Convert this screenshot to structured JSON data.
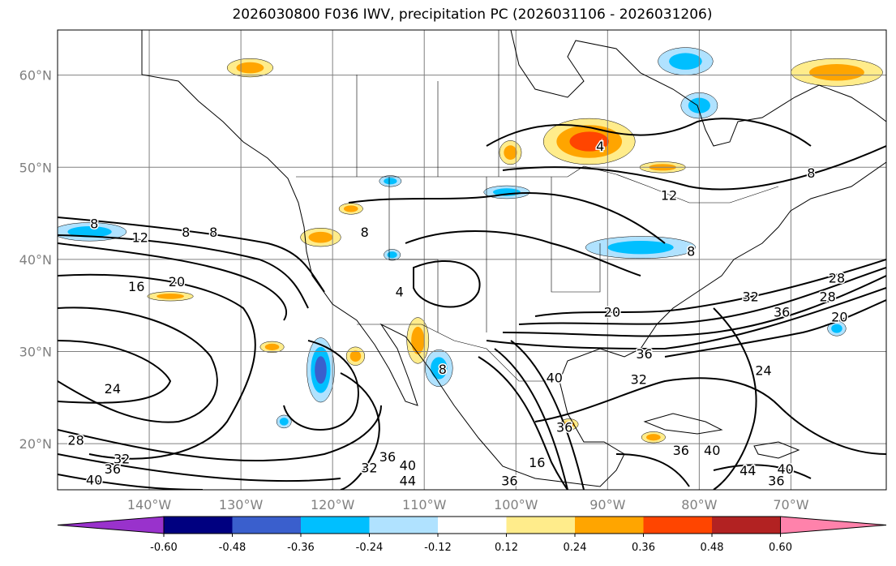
{
  "title": "2026030800 F036 IWV, precipitation PC (2026031106 - 2026031206)",
  "map": {
    "extent": {
      "lon_min": -150,
      "lon_max": -59.6,
      "lat_min": 15,
      "lat_max": 64.9
    },
    "lon_ticks": [
      {
        "lon": -140,
        "label": "140°W"
      },
      {
        "lon": -130,
        "label": "130°W"
      },
      {
        "lon": -120,
        "label": "120°W"
      },
      {
        "lon": -110,
        "label": "110°W"
      },
      {
        "lon": -100,
        "label": "100°W"
      },
      {
        "lon": -90,
        "label": "90°W"
      },
      {
        "lon": -80,
        "label": "80°W"
      },
      {
        "lon": -70,
        "label": "70°W"
      }
    ],
    "lat_ticks": [
      {
        "lat": 60,
        "label": "60°N"
      },
      {
        "lat": 50,
        "label": "50°N"
      },
      {
        "lat": 40,
        "label": "40°N"
      },
      {
        "lat": 30,
        "label": "30°N"
      },
      {
        "lat": 20,
        "label": "20°N"
      }
    ],
    "contour_labels": [
      {
        "lon": -146,
        "lat": 43.9,
        "text": "8"
      },
      {
        "lon": -141,
        "lat": 42.4,
        "text": "12"
      },
      {
        "lon": -136,
        "lat": 43,
        "text": "8"
      },
      {
        "lon": -133,
        "lat": 43,
        "text": "8"
      },
      {
        "lon": -141.4,
        "lat": 37.1,
        "text": "16"
      },
      {
        "lon": -137,
        "lat": 37.6,
        "text": "20"
      },
      {
        "lon": -144,
        "lat": 26,
        "text": "24"
      },
      {
        "lon": -148,
        "lat": 20.4,
        "text": "28"
      },
      {
        "lon": -143,
        "lat": 18.4,
        "text": "32"
      },
      {
        "lon": -144,
        "lat": 17.3,
        "text": "36"
      },
      {
        "lon": -146,
        "lat": 16.1,
        "text": "40"
      },
      {
        "lon": -90.8,
        "lat": 52.3,
        "text": "4"
      },
      {
        "lon": -83.3,
        "lat": 47,
        "text": "12"
      },
      {
        "lon": -67.8,
        "lat": 49.4,
        "text": "8"
      },
      {
        "lon": -80.9,
        "lat": 40.9,
        "text": "8"
      },
      {
        "lon": -116.5,
        "lat": 43,
        "text": "8"
      },
      {
        "lon": -112.7,
        "lat": 36.5,
        "text": "4"
      },
      {
        "lon": -89.5,
        "lat": 34.3,
        "text": "20"
      },
      {
        "lon": -74.4,
        "lat": 36,
        "text": "32"
      },
      {
        "lon": -71,
        "lat": 34.3,
        "text": "36"
      },
      {
        "lon": -66,
        "lat": 36,
        "text": "28"
      },
      {
        "lon": -64.7,
        "lat": 33.8,
        "text": "20"
      },
      {
        "lon": -65,
        "lat": 38,
        "text": "28"
      },
      {
        "lon": -73,
        "lat": 28,
        "text": "24"
      },
      {
        "lon": -86,
        "lat": 29.8,
        "text": "36"
      },
      {
        "lon": -86.6,
        "lat": 27,
        "text": "32"
      },
      {
        "lon": -95.8,
        "lat": 27.2,
        "text": "40"
      },
      {
        "lon": -94.7,
        "lat": 21.8,
        "text": "36"
      },
      {
        "lon": -82,
        "lat": 19.3,
        "text": "36"
      },
      {
        "lon": -78.6,
        "lat": 19.3,
        "text": "40"
      },
      {
        "lon": -74.7,
        "lat": 17.1,
        "text": "44"
      },
      {
        "lon": -70.6,
        "lat": 17.3,
        "text": "40"
      },
      {
        "lon": -71.6,
        "lat": 16,
        "text": "36"
      },
      {
        "lon": -111.8,
        "lat": 17.7,
        "text": "40"
      },
      {
        "lon": -111.8,
        "lat": 16,
        "text": "44"
      },
      {
        "lon": -100.7,
        "lat": 16,
        "text": "36"
      },
      {
        "lon": -116,
        "lat": 17.4,
        "text": "32"
      },
      {
        "lon": -114,
        "lat": 18.6,
        "text": "36"
      },
      {
        "lon": -97.7,
        "lat": 18,
        "text": "16"
      },
      {
        "lon": -108,
        "lat": 28.1,
        "text": "8"
      }
    ],
    "precip_pc": [
      {
        "lon": -92,
        "lat": 52.8,
        "rlon": 5,
        "rlat": 2.5,
        "value": 0.42
      },
      {
        "lon": -65,
        "lat": 60.3,
        "rlon": 5,
        "rlat": 1.5,
        "value": 0.32
      },
      {
        "lon": -81.5,
        "lat": 61.5,
        "rlon": 3,
        "rlat": 1.5,
        "value": -0.3
      },
      {
        "lon": -80,
        "lat": 56.7,
        "rlon": 2,
        "rlat": 1.4,
        "value": -0.3
      },
      {
        "lon": -86.4,
        "lat": 41.3,
        "rlon": 6,
        "rlat": 1.2,
        "value": -0.3
      },
      {
        "lon": -101,
        "lat": 47.3,
        "rlon": 2.5,
        "rlat": 0.7,
        "value": -0.3
      },
      {
        "lon": -121.3,
        "lat": 28,
        "rlon": 1.5,
        "rlat": 3.5,
        "value": -0.45
      },
      {
        "lon": -110.7,
        "lat": 31.2,
        "rlon": 1.2,
        "rlat": 2.5,
        "value": 0.4
      },
      {
        "lon": -146.5,
        "lat": 43,
        "rlon": 4,
        "rlat": 1,
        "value": -0.3
      },
      {
        "lon": -121.3,
        "lat": 42.4,
        "rlon": 2.2,
        "rlat": 1,
        "value": 0.3
      },
      {
        "lon": -137.7,
        "lat": 36,
        "rlon": 2.5,
        "rlat": 0.5,
        "value": 0.3
      },
      {
        "lon": -84,
        "lat": 50,
        "rlon": 2.5,
        "rlat": 0.6,
        "value": 0.3
      },
      {
        "lon": -108.4,
        "lat": 28.2,
        "rlon": 1.5,
        "rlat": 2,
        "value": -0.3
      },
      {
        "lon": -85,
        "lat": 20.7,
        "rlon": 1.3,
        "rlat": 0.6,
        "value": 0.3
      },
      {
        "lon": -100.6,
        "lat": 51.6,
        "rlon": 1.2,
        "rlat": 1.3,
        "value": 0.3
      },
      {
        "lon": -65,
        "lat": 32.5,
        "rlon": 1,
        "rlat": 0.8,
        "value": -0.3
      },
      {
        "lon": -126.6,
        "lat": 30.5,
        "rlon": 1.3,
        "rlat": 0.6,
        "value": 0.3
      },
      {
        "lon": -125.3,
        "lat": 22.4,
        "rlon": 0.8,
        "rlat": 0.7,
        "value": -0.3
      },
      {
        "lon": -129,
        "lat": 60.8,
        "rlon": 2.5,
        "rlat": 1,
        "value": 0.3
      },
      {
        "lon": -113.7,
        "lat": 48.5,
        "rlon": 1.2,
        "rlat": 0.6,
        "value": -0.3
      },
      {
        "lon": -118,
        "lat": 45.5,
        "rlon": 1.3,
        "rlat": 0.6,
        "value": 0.3
      },
      {
        "lon": -113.5,
        "lat": 40.5,
        "rlon": 0.9,
        "rlat": 0.6,
        "value": -0.3
      },
      {
        "lon": -117.5,
        "lat": 29.5,
        "rlon": 1,
        "rlat": 1,
        "value": 0.3
      },
      {
        "lon": -94.2,
        "lat": 22.1,
        "rlon": 1,
        "rlat": 0.6,
        "value": 0.3
      }
    ]
  },
  "colorbar": {
    "levels": [
      "-0.60",
      "-0.48",
      "-0.36",
      "-0.24",
      "-0.12",
      "0.12",
      "0.24",
      "0.36",
      "0.48",
      "0.60"
    ],
    "bounds": [
      -0.6,
      -0.48,
      -0.36,
      -0.24,
      -0.12,
      0.12,
      0.24,
      0.36,
      0.48,
      0.6
    ],
    "colors": [
      "#9932cc",
      "#000080",
      "#3a5fcd",
      "#00bfff",
      "#b0e2ff",
      "#ffffff",
      "#ffec8b",
      "#ffa500",
      "#ff4500",
      "#b22222",
      "#ff82ab"
    ]
  }
}
